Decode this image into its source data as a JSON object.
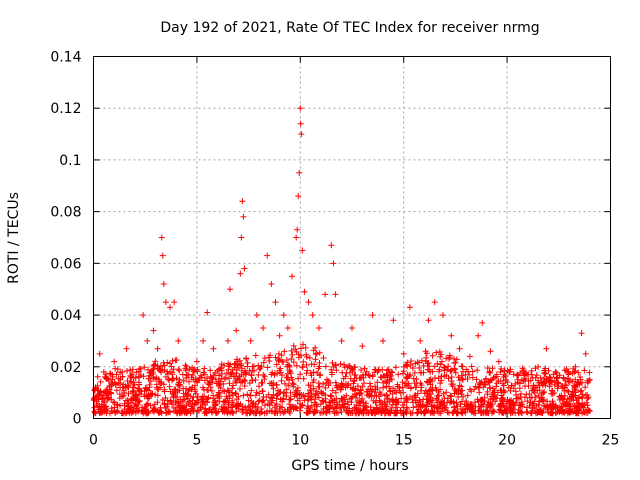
{
  "chart_data": {
    "type": "scatter",
    "title": "Day 192 of 2021, Rate Of TEC Index for receiver nrmg",
    "xlabel": "GPS time / hours",
    "ylabel": "ROTI / TECUs",
    "xlim": [
      0,
      25
    ],
    "ylim": [
      0,
      0.14
    ],
    "x_ticks": [
      0,
      5,
      10,
      15,
      20,
      25
    ],
    "x_tick_labels": [
      "0",
      "5",
      "10",
      "15",
      "20",
      "25"
    ],
    "y_ticks": [
      0,
      0.02,
      0.04,
      0.06,
      0.08,
      0.1,
      0.12,
      0.14
    ],
    "y_tick_labels": [
      "0",
      "0.02",
      "0.04",
      "0.06",
      "0.08",
      "0.1",
      "0.12",
      "0.14"
    ],
    "grid": true,
    "marker": "+",
    "series": [
      {
        "name": "ROTI",
        "color": "#ff0000",
        "note": "Dense scatter of ROTI samples over 0-24 h; baseline ~0.003-0.02 with bursts. Points below are representative samples read off the figure.",
        "points": [
          [
            0.1,
            0.012
          ],
          [
            0.3,
            0.025
          ],
          [
            0.5,
            0.018
          ],
          [
            0.8,
            0.01
          ],
          [
            1.0,
            0.022
          ],
          [
            1.3,
            0.015
          ],
          [
            1.6,
            0.027
          ],
          [
            1.9,
            0.019
          ],
          [
            2.2,
            0.014
          ],
          [
            2.4,
            0.04
          ],
          [
            2.6,
            0.03
          ],
          [
            2.9,
            0.034
          ],
          [
            3.1,
            0.027
          ],
          [
            3.3,
            0.07
          ],
          [
            3.35,
            0.063
          ],
          [
            3.4,
            0.052
          ],
          [
            3.5,
            0.045
          ],
          [
            3.7,
            0.043
          ],
          [
            3.9,
            0.045
          ],
          [
            4.1,
            0.03
          ],
          [
            4.5,
            0.02
          ],
          [
            5.0,
            0.022
          ],
          [
            5.3,
            0.03
          ],
          [
            5.5,
            0.041
          ],
          [
            5.8,
            0.027
          ],
          [
            6.2,
            0.021
          ],
          [
            6.5,
            0.03
          ],
          [
            6.6,
            0.05
          ],
          [
            6.9,
            0.034
          ],
          [
            7.1,
            0.056
          ],
          [
            7.15,
            0.07
          ],
          [
            7.2,
            0.084
          ],
          [
            7.25,
            0.078
          ],
          [
            7.3,
            0.058
          ],
          [
            7.6,
            0.03
          ],
          [
            7.9,
            0.04
          ],
          [
            8.2,
            0.035
          ],
          [
            8.4,
            0.063
          ],
          [
            8.6,
            0.052
          ],
          [
            8.8,
            0.045
          ],
          [
            9.0,
            0.032
          ],
          [
            9.2,
            0.04
          ],
          [
            9.4,
            0.035
          ],
          [
            9.6,
            0.055
          ],
          [
            9.8,
            0.07
          ],
          [
            9.85,
            0.073
          ],
          [
            9.9,
            0.086
          ],
          [
            9.95,
            0.095
          ],
          [
            10.0,
            0.12
          ],
          [
            10.02,
            0.114
          ],
          [
            10.05,
            0.11
          ],
          [
            10.1,
            0.065
          ],
          [
            10.2,
            0.049
          ],
          [
            10.4,
            0.045
          ],
          [
            10.6,
            0.04
          ],
          [
            10.9,
            0.035
          ],
          [
            11.2,
            0.048
          ],
          [
            11.5,
            0.067
          ],
          [
            11.6,
            0.06
          ],
          [
            11.7,
            0.048
          ],
          [
            12.0,
            0.03
          ],
          [
            12.5,
            0.035
          ],
          [
            13.0,
            0.028
          ],
          [
            13.5,
            0.04
          ],
          [
            14.0,
            0.03
          ],
          [
            14.5,
            0.038
          ],
          [
            15.0,
            0.025
          ],
          [
            15.3,
            0.043
          ],
          [
            15.8,
            0.03
          ],
          [
            16.2,
            0.038
          ],
          [
            16.5,
            0.045
          ],
          [
            16.9,
            0.04
          ],
          [
            17.3,
            0.032
          ],
          [
            17.7,
            0.027
          ],
          [
            18.2,
            0.024
          ],
          [
            18.6,
            0.032
          ],
          [
            18.8,
            0.037
          ],
          [
            19.2,
            0.026
          ],
          [
            19.6,
            0.022
          ],
          [
            20.1,
            0.018
          ],
          [
            20.5,
            0.015
          ],
          [
            21.0,
            0.017
          ],
          [
            21.5,
            0.02
          ],
          [
            21.9,
            0.027
          ],
          [
            22.3,
            0.013
          ],
          [
            22.8,
            0.012
          ],
          [
            23.3,
            0.02
          ],
          [
            23.6,
            0.033
          ],
          [
            23.8,
            0.025
          ],
          [
            24.0,
            0.015
          ]
        ]
      }
    ]
  }
}
